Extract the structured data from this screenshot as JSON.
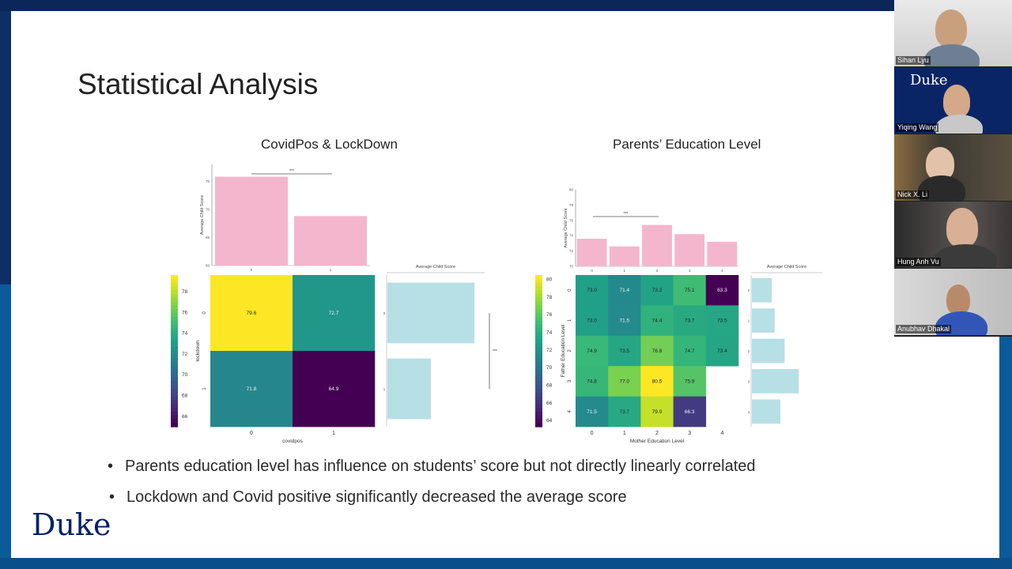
{
  "slide": {
    "title": "Statistical Analysis",
    "left_subtitle": "CovidPos & LockDown",
    "right_subtitle": "Parents’ Education Level",
    "bullets": [
      "Parents education level has influence on students’ score but not directly linearly correlated",
      "Lockdown and Covid positive significantly decreased the average score"
    ],
    "logo": "Duke"
  },
  "participants": [
    {
      "name": "Sihan Lyu"
    },
    {
      "name": "Yiqing Wang",
      "background_text": "Duke"
    },
    {
      "name": "Nick X. Li"
    },
    {
      "name": "Hung Anh Vu"
    },
    {
      "name": "Anubhav Dhakal"
    }
  ],
  "chart_data": [
    {
      "type": "heatmap",
      "title": "CovidPos & LockDown",
      "xlabel": "covidpos",
      "ylabel": "lockdown",
      "x_categories": [
        "0",
        "1"
      ],
      "y_categories": [
        "0",
        "1"
      ],
      "values": [
        [
          79.6,
          72.7
        ],
        [
          71.8,
          64.9
        ]
      ],
      "colorbar_ticks": [
        "78",
        "76",
        "74",
        "72",
        "70",
        "68",
        "66"
      ],
      "colorbar_range": [
        65,
        79.6
      ],
      "top_bar": {
        "ylabel": "Average Child Score",
        "categories": [
          "0",
          "1"
        ],
        "values": [
          75.8,
          68.8
        ],
        "ylim": [
          60,
          78
        ],
        "ticks": [
          "75",
          "70",
          "65",
          "60"
        ],
        "significance": "***"
      },
      "side_bar": {
        "xlabel": "Average Child Score",
        "categories": [
          "0",
          "1"
        ],
        "values": [
          76,
          68
        ],
        "significance": "***"
      }
    },
    {
      "type": "heatmap",
      "title": "Parents’ Education Level",
      "xlabel": "Mother Education Level",
      "ylabel": "Father Education Level",
      "x_categories": [
        "0",
        "1",
        "2",
        "3",
        "4"
      ],
      "y_categories": [
        "0",
        "1",
        "2",
        "3",
        "4"
      ],
      "values": [
        [
          73.0,
          71.4,
          73.2,
          75.1,
          63.3
        ],
        [
          73.0,
          71.5,
          74.4,
          73.7,
          73.5
        ],
        [
          74.9,
          73.5,
          76.8,
          74.7,
          73.4
        ],
        [
          74.8,
          77.0,
          80.5,
          75.9,
          null
        ],
        [
          71.5,
          73.7,
          79.0,
          66.3,
          null
        ]
      ],
      "colorbar_ticks": [
        "80",
        "78",
        "76",
        "74",
        "72",
        "70",
        "68",
        "66",
        "64"
      ],
      "colorbar_range": [
        63.3,
        80.5
      ],
      "top_bar": {
        "ylabel": "Average Child Score",
        "categories": [
          "0",
          "1",
          "2",
          "3",
          "4"
        ],
        "values": [
          73.6,
          72.6,
          75.4,
          74.2,
          73.2
        ],
        "ylim": [
          70,
          80
        ],
        "ticks": [
          "80",
          "78",
          "76",
          "74",
          "72",
          "70"
        ],
        "significance": "***"
      },
      "side_bar": {
        "xlabel": "Average Child Score",
        "categories": [
          "0",
          "1",
          "2",
          "3",
          "4"
        ],
        "values": [
          72.8,
          73.2,
          74.6,
          76.6,
          74.0
        ]
      }
    }
  ]
}
